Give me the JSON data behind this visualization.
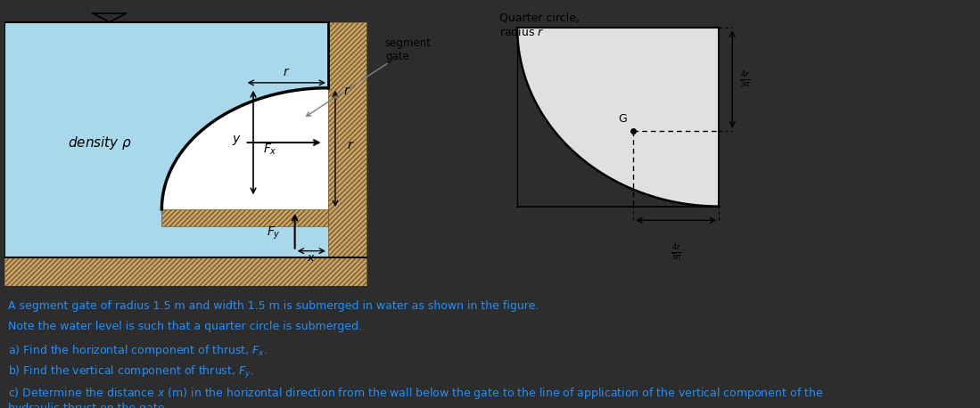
{
  "bg_color": "#2d2d2d",
  "diagram_bg": "#ffffff",
  "water_color": "#a8d8ea",
  "hatch_bg": "#c8a46e",
  "text_color": "#1e90ff",
  "title1": "A segment gate of radius 1.5 m and width 1.5 m is submerged in water as shown in the figure.",
  "title2": "Note the water level is such that a quarter circle is submerged.",
  "part_a": "a) Find the horizontal component of thrust, $F_x$.",
  "part_b": "b) Find the vertical component of thrust, $F_y$.",
  "part_c": "c) Determine the distance $x$ (m) in the horizontal direction from the wall below the gate to the line of application of the vertical component of the\nhydraulic thrust on the gate.",
  "segment_gate_label": "segment\ngate",
  "quarter_circle_label": "Quarter circle,\nradius r"
}
